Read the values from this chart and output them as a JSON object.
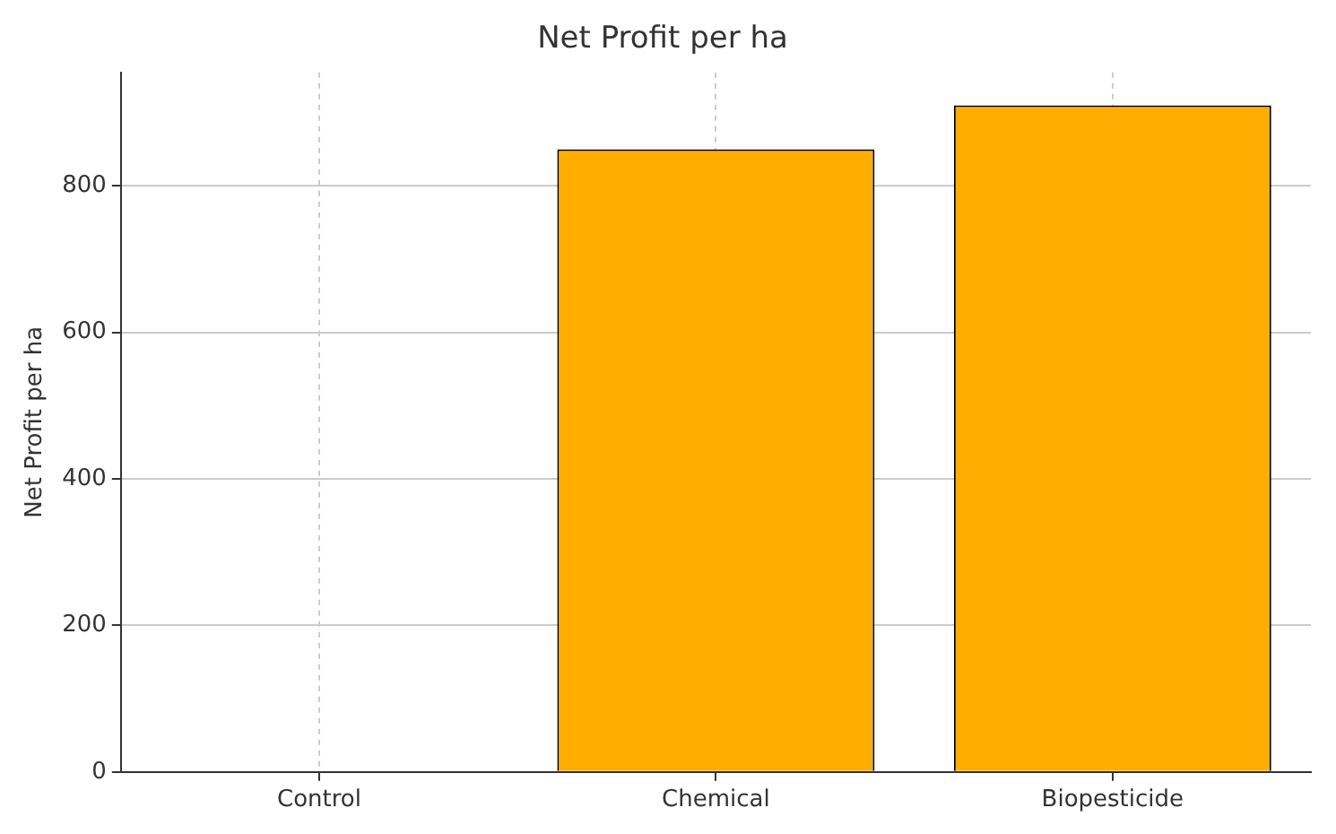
{
  "chart_data": {
    "type": "bar",
    "title": "Net Profit per ha",
    "ylabel": "Net Profit per ha",
    "categories": [
      "Control",
      "Chemical",
      "Biopesticide"
    ],
    "values": [
      0,
      850,
      910
    ],
    "color": "#ffae00",
    "ylim": [
      0,
      955
    ],
    "yticks": [
      0,
      200,
      400,
      600,
      800
    ],
    "grid": true
  }
}
